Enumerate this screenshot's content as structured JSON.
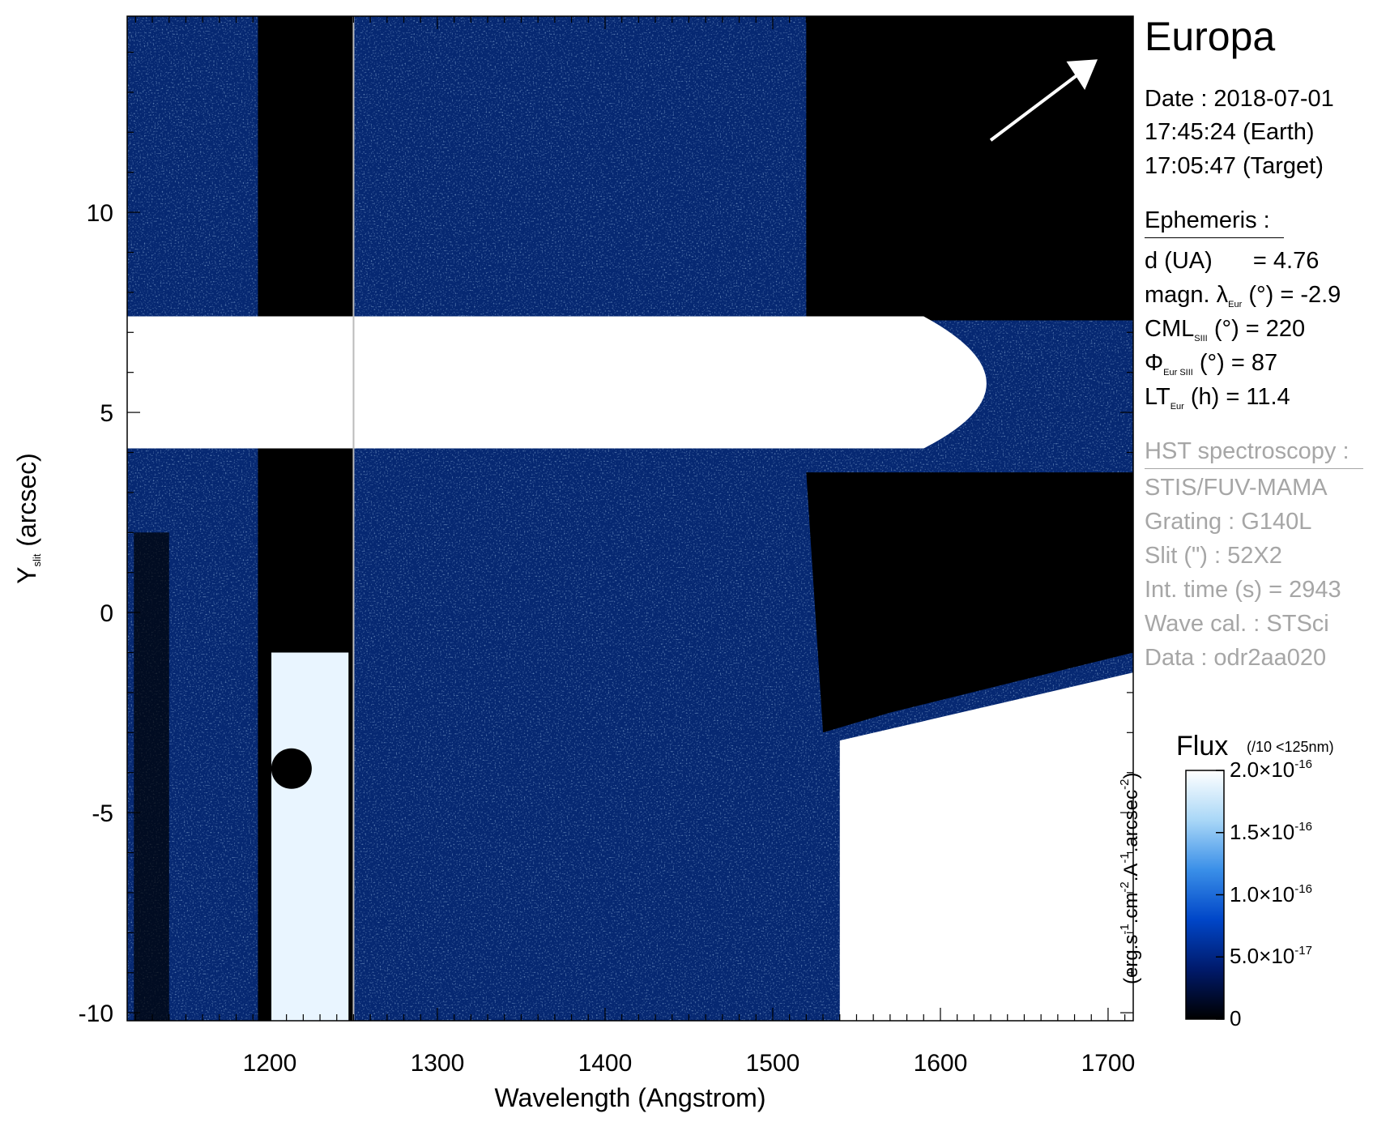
{
  "chart_data": {
    "type": "heatmap",
    "xlabel": "Wavelength (Angstrom)",
    "ylabel": {
      "main": "Y",
      "sub": "slit",
      "unit": "(arcsec)"
    },
    "xlim": [
      1115,
      1715
    ],
    "ylim": [
      -10.2,
      14.9
    ],
    "x_ticks": [
      1200,
      1300,
      1400,
      1500,
      1600,
      1700
    ],
    "y_ticks": [
      10,
      5,
      0,
      -5,
      -10
    ],
    "x_tick_labels": [
      "1200",
      "1300",
      "1400",
      "1500",
      "1600",
      "1700"
    ],
    "y_tick_labels": [
      "10",
      "5",
      "0",
      "-5",
      "-10"
    ],
    "colormap": [
      "#000000",
      "#001a6b",
      "#0046c8",
      "#3a8fe8",
      "#a9d7f7",
      "#ffffff"
    ],
    "colorbar": {
      "title": "Flux",
      "note": "(/10 <125nm)",
      "unit": "(erg.s-1.cm-2.A-1.arcsec-2)",
      "range": [
        0,
        2e-16
      ],
      "ticks": [
        {
          "value": 2e-16,
          "mantissa": "2.0",
          "exp": "-16"
        },
        {
          "value": 1.5e-16,
          "mantissa": "1.5",
          "exp": "-16"
        },
        {
          "value": 1e-16,
          "mantissa": "1.0",
          "exp": "-16"
        },
        {
          "value": 5e-17,
          "mantissa": "5.0",
          "exp": "-17"
        },
        {
          "value": 0,
          "mantissa": "0",
          "exp": ""
        }
      ]
    },
    "features": {
      "saturated_band": {
        "y": [
          4.1,
          7.4
        ],
        "x_end": 1665
      },
      "lyman_alpha_region": {
        "x": [
          1193,
          1250
        ]
      },
      "detector_edge": {
        "x": 1250
      }
    }
  },
  "panel": {
    "target": "Europa",
    "date_line": "Date : 2018-07-01",
    "earth_time": "17:45:24 (Earth)",
    "target_time": "17:05:47 (Target)",
    "ephemeris_header": "Ephemeris :",
    "ephemeris": {
      "d_label": "d (UA)",
      "d_value": "= 4.76",
      "lambda_label": "magn. λ",
      "lambda_sub": "Eur",
      "lambda_unit": "(°)",
      "lambda_value": "= -2.9",
      "cml_label": "CML",
      "cml_sub": "SIII",
      "cml_unit": "(°)",
      "cml_value": "= 220",
      "phi_label": "Φ",
      "phi_sub": "Eur SIII",
      "phi_unit": "(°)",
      "phi_value": "= 87",
      "lt_label": "LT",
      "lt_sub": "Eur",
      "lt_unit": "(h)",
      "lt_value": "= 11.4"
    },
    "hst_header": "HST spectroscopy :",
    "hst": {
      "instrument": "STIS/FUV-MAMA",
      "grating": "Grating : G140L",
      "slit": "Slit (\") : 52X2",
      "int_time": "Int. time (s) = 2943",
      "wave_cal": "Wave cal. : STSci",
      "data": "Data : odr2aa020"
    }
  }
}
